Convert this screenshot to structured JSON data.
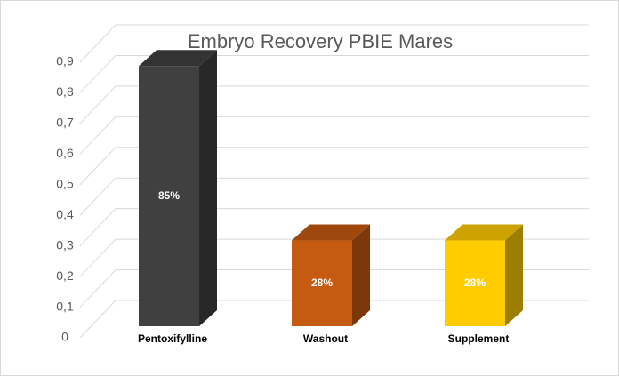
{
  "chart_data": {
    "type": "bar3d",
    "title": "Embryo Recovery PBIE Mares",
    "categories": [
      "Pentoxifylline",
      "Washout",
      "Supplement"
    ],
    "values": [
      0.85,
      0.28,
      0.28
    ],
    "value_labels": [
      "85%",
      "28%",
      "28%"
    ],
    "colors": [
      "#404040",
      "#c55a11",
      "#ffcc00"
    ],
    "ylim": [
      0,
      0.9
    ],
    "yticks": [
      0,
      {
        "value": 0.1,
        "label": "0,1"
      },
      {
        "value": 0.2,
        "label": "0,2"
      },
      {
        "value": 0.3,
        "label": "0,3"
      },
      {
        "value": 0.4,
        "label": "0,4"
      },
      {
        "value": 0.5,
        "label": "0,5"
      },
      {
        "value": 0.6,
        "label": "0,6"
      },
      {
        "value": 0.7,
        "label": "0,7"
      },
      {
        "value": 0.8,
        "label": "0,8"
      },
      {
        "value": 0.9,
        "label": "0,9"
      }
    ],
    "grid": true
  }
}
